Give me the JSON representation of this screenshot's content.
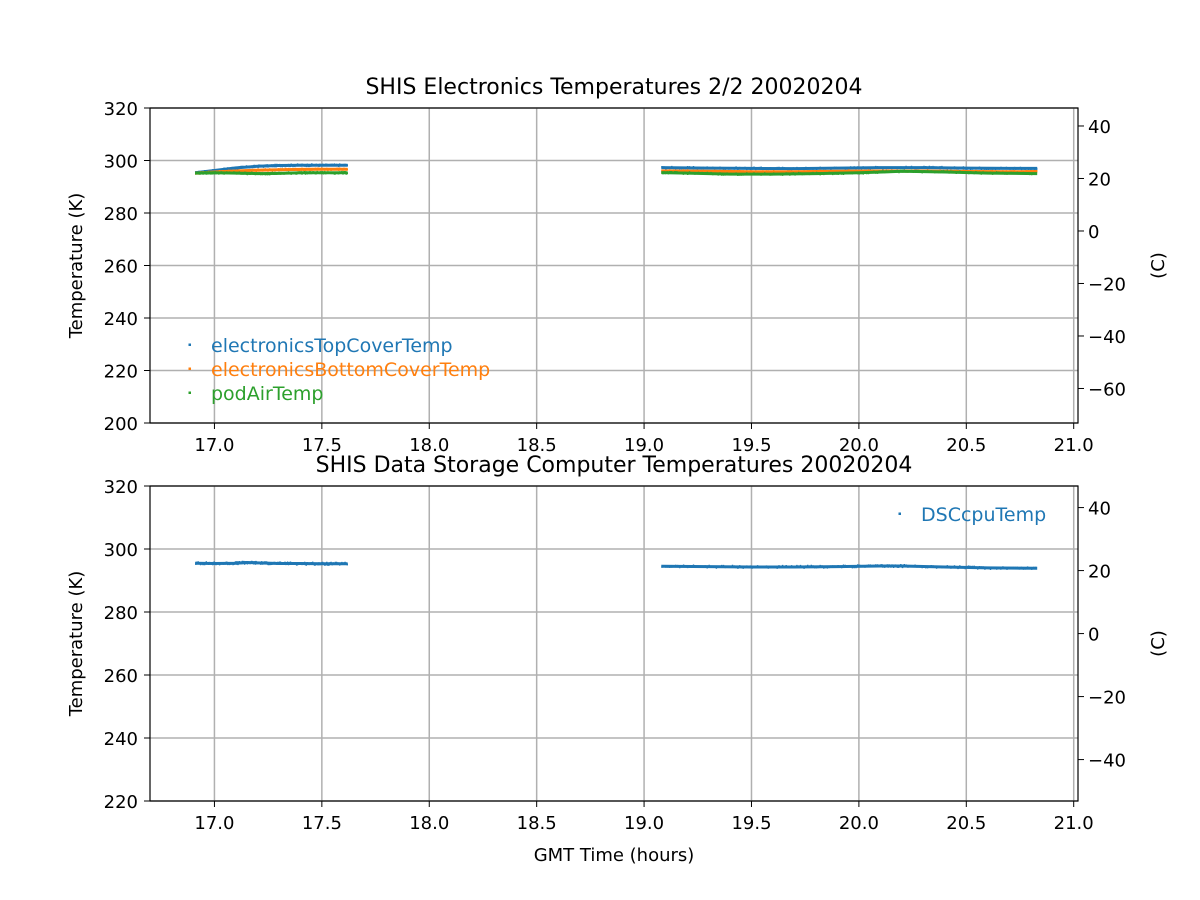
{
  "colors": {
    "electronicsTopCoverTemp": "#1f77b4",
    "electronicsBottomCoverTemp": "#ff7f0e",
    "podAirTemp": "#2ca02c",
    "DSCcpuTemp": "#1f77b4",
    "grid": "#b0b0b0"
  },
  "chart_data": [
    {
      "type": "scatter",
      "title": "SHIS Electronics Temperatures 2/2 20020204",
      "xlabel": "",
      "ylabel": "Temperature (K)",
      "y2label": "(C)",
      "xlim": [
        16.7,
        21.02
      ],
      "ylim": [
        200,
        320
      ],
      "y2lim": [
        -73.15,
        46.85
      ],
      "xticks": [
        "17.0",
        "17.5",
        "18.0",
        "18.5",
        "19.0",
        "19.5",
        "20.0",
        "20.5",
        "21.0"
      ],
      "yticks": [
        "200",
        "220",
        "240",
        "260",
        "280",
        "300",
        "320"
      ],
      "y2ticks": [
        "−60",
        "−40",
        "−20",
        "0",
        "20",
        "40"
      ],
      "grid": true,
      "legend_position": "lower-left",
      "series": [
        {
          "name": "electronicsTopCoverTemp",
          "segments": [
            [
              [
                16.91,
                295.3
              ],
              [
                17.0,
                296.2
              ],
              [
                17.1,
                297.2
              ],
              [
                17.2,
                297.8
              ],
              [
                17.3,
                298.1
              ],
              [
                17.4,
                298.2
              ],
              [
                17.5,
                298.2
              ],
              [
                17.62,
                298.2
              ]
            ],
            [
              [
                19.08,
                297.3
              ],
              [
                19.3,
                297.1
              ],
              [
                19.5,
                297.0
              ],
              [
                19.7,
                296.9
              ],
              [
                19.9,
                297.1
              ],
              [
                20.1,
                297.3
              ],
              [
                20.3,
                297.3
              ],
              [
                20.5,
                297.1
              ],
              [
                20.7,
                297.0
              ],
              [
                20.83,
                297.0
              ]
            ]
          ]
        },
        {
          "name": "electronicsBottomCoverTemp",
          "segments": [
            [
              [
                16.91,
                295.2
              ],
              [
                17.0,
                295.6
              ],
              [
                17.1,
                296.0
              ],
              [
                17.2,
                296.3
              ],
              [
                17.3,
                296.5
              ],
              [
                17.4,
                296.6
              ],
              [
                17.5,
                296.7
              ],
              [
                17.62,
                296.7
              ]
            ],
            [
              [
                19.08,
                296.0
              ],
              [
                19.3,
                295.9
              ],
              [
                19.5,
                295.7
              ],
              [
                19.7,
                295.7
              ],
              [
                19.9,
                295.9
              ],
              [
                20.1,
                296.0
              ],
              [
                20.3,
                296.0
              ],
              [
                20.5,
                295.8
              ],
              [
                20.7,
                295.7
              ],
              [
                20.83,
                295.8
              ]
            ]
          ]
        },
        {
          "name": "podAirTemp",
          "segments": [
            [
              [
                16.91,
                295.2
              ],
              [
                17.0,
                295.3
              ],
              [
                17.1,
                295.2
              ],
              [
                17.2,
                295.0
              ],
              [
                17.3,
                295.1
              ],
              [
                17.4,
                295.3
              ],
              [
                17.5,
                295.3
              ],
              [
                17.62,
                295.3
              ]
            ],
            [
              [
                19.08,
                295.4
              ],
              [
                19.2,
                295.2
              ],
              [
                19.4,
                294.8
              ],
              [
                19.6,
                294.8
              ],
              [
                19.8,
                295.0
              ],
              [
                20.0,
                295.3
              ],
              [
                20.2,
                295.9
              ],
              [
                20.4,
                295.6
              ],
              [
                20.6,
                295.2
              ],
              [
                20.83,
                295.0
              ]
            ]
          ]
        }
      ]
    },
    {
      "type": "scatter",
      "title": "SHIS Data Storage Computer Temperatures 20020204",
      "xlabel": "GMT Time (hours)",
      "ylabel": "Temperature (K)",
      "y2label": "(C)",
      "xlim": [
        16.7,
        21.02
      ],
      "ylim": [
        220,
        320
      ],
      "y2lim": [
        -53.15,
        46.85
      ],
      "xticks": [
        "17.0",
        "17.5",
        "18.0",
        "18.5",
        "19.0",
        "19.5",
        "20.0",
        "20.5",
        "21.0"
      ],
      "yticks": [
        "220",
        "240",
        "260",
        "280",
        "300",
        "320"
      ],
      "y2ticks": [
        "−40",
        "−20",
        "0",
        "20",
        "40"
      ],
      "grid": true,
      "legend_position": "upper-right",
      "series": [
        {
          "name": "DSCcpuTemp",
          "segments": [
            [
              [
                16.91,
                295.5
              ],
              [
                17.0,
                295.4
              ],
              [
                17.1,
                295.5
              ],
              [
                17.15,
                295.7
              ],
              [
                17.2,
                295.6
              ],
              [
                17.3,
                295.4
              ],
              [
                17.4,
                295.4
              ],
              [
                17.5,
                295.3
              ],
              [
                17.62,
                295.3
              ]
            ],
            [
              [
                19.08,
                294.5
              ],
              [
                19.3,
                294.4
              ],
              [
                19.5,
                294.3
              ],
              [
                19.7,
                294.3
              ],
              [
                19.9,
                294.4
              ],
              [
                20.1,
                294.6
              ],
              [
                20.2,
                294.6
              ],
              [
                20.4,
                294.3
              ],
              [
                20.6,
                294.0
              ],
              [
                20.83,
                293.9
              ]
            ]
          ]
        }
      ]
    }
  ]
}
